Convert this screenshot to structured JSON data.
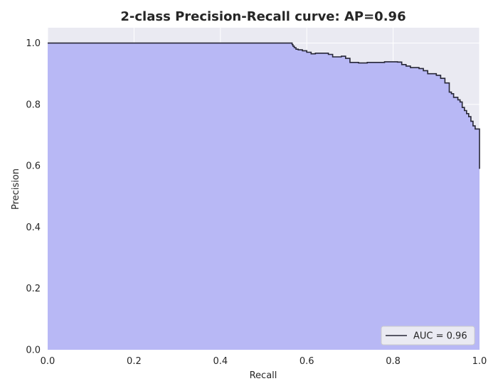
{
  "chart_data": {
    "type": "area",
    "title": "2-class Precision-Recall curve: AP=0.96",
    "xlabel": "Recall",
    "ylabel": "Precision",
    "xlim": [
      0.0,
      1.0
    ],
    "ylim": [
      0.0,
      1.05
    ],
    "xticks": [
      0.0,
      0.2,
      0.4,
      0.6,
      0.8,
      1.0
    ],
    "xtick_labels": [
      "0.0",
      "0.2",
      "0.4",
      "0.6",
      "0.8",
      "1.0"
    ],
    "yticks": [
      0.0,
      0.2,
      0.4,
      0.6,
      0.8,
      1.0
    ],
    "ytick_labels": [
      "0.0",
      "0.2",
      "0.4",
      "0.6",
      "0.8",
      "1.0"
    ],
    "grid": true,
    "legend_position": "lower-right",
    "colors": {
      "background": "#eaeaf2",
      "fill": "#b8b8f5",
      "line": "#262636",
      "grid": "#ffffff"
    },
    "series": [
      {
        "name": "AUC = 0.96",
        "step": "post",
        "x": [
          0.0,
          0.566,
          0.568,
          0.571,
          0.575,
          0.58,
          0.59,
          0.6,
          0.61,
          0.62,
          0.65,
          0.66,
          0.68,
          0.69,
          0.7,
          0.72,
          0.74,
          0.78,
          0.81,
          0.82,
          0.83,
          0.84,
          0.86,
          0.87,
          0.88,
          0.9,
          0.91,
          0.92,
          0.93,
          0.935,
          0.94,
          0.95,
          0.955,
          0.96,
          0.965,
          0.97,
          0.975,
          0.98,
          0.985,
          0.99,
          0.995,
          1.0
        ],
        "y": [
          1.0,
          0.995,
          0.99,
          0.985,
          0.98,
          0.978,
          0.975,
          0.97,
          0.965,
          0.967,
          0.963,
          0.955,
          0.957,
          0.95,
          0.937,
          0.935,
          0.937,
          0.939,
          0.938,
          0.93,
          0.925,
          0.92,
          0.917,
          0.91,
          0.9,
          0.895,
          0.885,
          0.87,
          0.84,
          0.835,
          0.823,
          0.815,
          0.808,
          0.79,
          0.78,
          0.77,
          0.76,
          0.745,
          0.73,
          0.72,
          0.72,
          0.59
        ]
      }
    ]
  }
}
